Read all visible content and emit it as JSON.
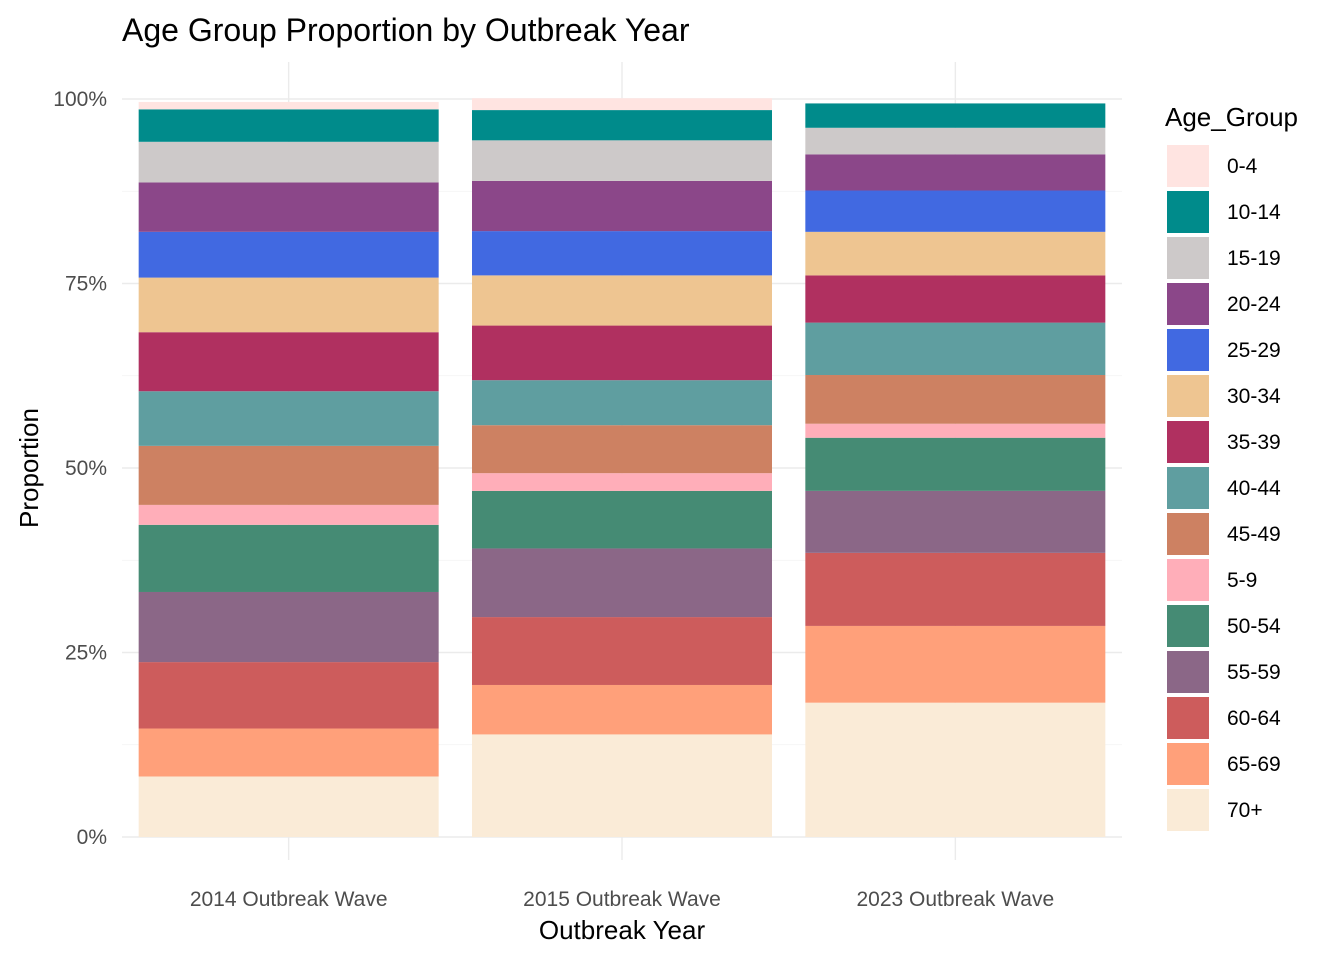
{
  "chart_data": {
    "type": "bar",
    "stacked": true,
    "title": "Age Group Proportion by Outbreak Year",
    "xlabel": "Outbreak Year",
    "ylabel": "Proportion",
    "ylim": [
      0,
      1
    ],
    "y_ticks": [
      0,
      0.25,
      0.5,
      0.75,
      1.0
    ],
    "y_tick_labels": [
      "0%",
      "25%",
      "50%",
      "75%",
      "100%"
    ],
    "grid": true,
    "legend_title": "Age_Group",
    "legend_position": "right",
    "categories": [
      "2014 Outbreak Wave",
      "2015 Outbreak Wave",
      "2023 Outbreak Wave"
    ],
    "stack_order_bottom_to_top": [
      "70+",
      "65-69",
      "60-64",
      "55-59",
      "50-54",
      "5-9",
      "45-49",
      "40-44",
      "35-39",
      "30-34",
      "25-29",
      "20-24",
      "15-19",
      "10-14",
      "0-4"
    ],
    "series": [
      {
        "name": "0-4",
        "color": "#FFE4E1",
        "values": [
          0.01,
          0.016,
          0.0
        ]
      },
      {
        "name": "10-14",
        "color": "#008B8B",
        "values": [
          0.044,
          0.041,
          0.033
        ]
      },
      {
        "name": "15-19",
        "color": "#CDC9C9",
        "values": [
          0.055,
          0.055,
          0.036
        ]
      },
      {
        "name": "20-24",
        "color": "#8B4789",
        "values": [
          0.067,
          0.068,
          0.049
        ]
      },
      {
        "name": "25-29",
        "color": "#4169E1",
        "values": [
          0.062,
          0.06,
          0.056
        ]
      },
      {
        "name": "30-34",
        "color": "#EEC591",
        "values": [
          0.074,
          0.068,
          0.059
        ]
      },
      {
        "name": "35-39",
        "color": "#B03060",
        "values": [
          0.08,
          0.074,
          0.064
        ]
      },
      {
        "name": "40-44",
        "color": "#5F9EA0",
        "values": [
          0.074,
          0.061,
          0.071
        ]
      },
      {
        "name": "45-49",
        "color": "#CD8162",
        "values": [
          0.08,
          0.065,
          0.066
        ]
      },
      {
        "name": "5-9",
        "color": "#FFAEB9",
        "values": [
          0.027,
          0.024,
          0.019
        ]
      },
      {
        "name": "50-54",
        "color": "#458B74",
        "values": [
          0.091,
          0.078,
          0.072
        ]
      },
      {
        "name": "55-59",
        "color": "#8B6787",
        "values": [
          0.095,
          0.093,
          0.084
        ]
      },
      {
        "name": "60-64",
        "color": "#CD5C5C",
        "values": [
          0.09,
          0.092,
          0.099
        ]
      },
      {
        "name": "65-69",
        "color": "#FFA07A",
        "values": [
          0.065,
          0.067,
          0.104
        ]
      },
      {
        "name": "70+",
        "color": "#FAEBD7",
        "values": [
          0.082,
          0.139,
          0.182
        ]
      }
    ]
  }
}
